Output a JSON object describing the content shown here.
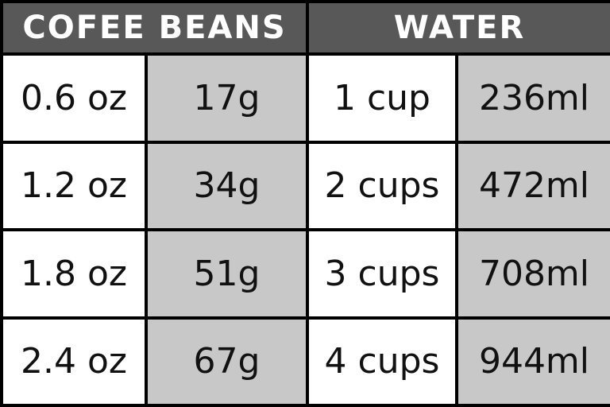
{
  "header": {
    "columns": [
      "COFEE BEANS",
      "WATER"
    ]
  },
  "table": {
    "rows": [
      [
        "0.6 oz",
        "17g",
        "1 cup",
        "236ml"
      ],
      [
        "1.2 oz",
        "34g",
        "2 cups",
        "472ml"
      ],
      [
        "1.8 oz",
        "51g",
        "3 cups",
        "708ml"
      ],
      [
        "2.4 oz",
        "67g",
        "4 cups",
        "944ml"
      ]
    ]
  }
}
